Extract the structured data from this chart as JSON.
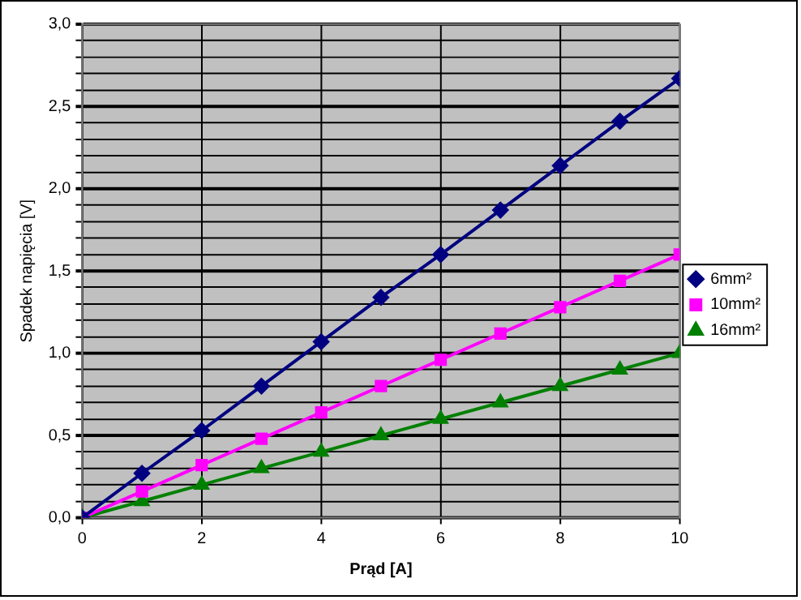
{
  "chart_data": {
    "type": "line",
    "xlabel": "Prąd [A]",
    "ylabel": "Spadek napięcia [V]",
    "x": [
      0,
      1,
      2,
      3,
      4,
      5,
      6,
      7,
      8,
      9,
      10
    ],
    "series": [
      {
        "name": "6mm²",
        "color": "#000080",
        "marker": "diamond",
        "values": [
          0,
          0.27,
          0.53,
          0.8,
          1.07,
          1.34,
          1.6,
          1.87,
          2.14,
          2.41,
          2.67
        ]
      },
      {
        "name": "10mm²",
        "color": "#ff00ff",
        "marker": "square",
        "values": [
          0,
          0.16,
          0.32,
          0.48,
          0.64,
          0.8,
          0.96,
          1.12,
          1.28,
          1.44,
          1.6
        ]
      },
      {
        "name": "16mm²",
        "color": "#008000",
        "marker": "triangle",
        "values": [
          0,
          0.1,
          0.2,
          0.3,
          0.4,
          0.5,
          0.6,
          0.7,
          0.8,
          0.9,
          1.0
        ]
      }
    ],
    "xlim": [
      0,
      10
    ],
    "xticks": [
      0,
      2,
      4,
      6,
      8,
      10
    ],
    "ylim": [
      0,
      3
    ],
    "yticks": [
      {
        "value": 0,
        "label": "0,0"
      },
      {
        "value": 0.1,
        "label": null
      },
      {
        "value": 0.2,
        "label": null
      },
      {
        "value": 0.3,
        "label": null
      },
      {
        "value": 0.4,
        "label": null
      },
      {
        "value": 0.5,
        "label": "0,5"
      },
      {
        "value": 0.6,
        "label": null
      },
      {
        "value": 0.7,
        "label": null
      },
      {
        "value": 0.8,
        "label": null
      },
      {
        "value": 0.9,
        "label": null
      },
      {
        "value": 1,
        "label": "1,0"
      },
      {
        "value": 1.1,
        "label": null
      },
      {
        "value": 1.2,
        "label": null
      },
      {
        "value": 1.3,
        "label": null
      },
      {
        "value": 1.4,
        "label": null
      },
      {
        "value": 1.5,
        "label": "1,5"
      },
      {
        "value": 1.6,
        "label": null
      },
      {
        "value": 1.7,
        "label": null
      },
      {
        "value": 1.8,
        "label": null
      },
      {
        "value": 1.9,
        "label": null
      },
      {
        "value": 2,
        "label": "2,0"
      },
      {
        "value": 2.1,
        "label": null
      },
      {
        "value": 2.2,
        "label": null
      },
      {
        "value": 2.3,
        "label": null
      },
      {
        "value": 2.4,
        "label": null
      },
      {
        "value": 2.5,
        "label": "2,5"
      },
      {
        "value": 2.6,
        "label": null
      },
      {
        "value": 2.7,
        "label": null
      },
      {
        "value": 2.8,
        "label": null
      },
      {
        "value": 2.9,
        "label": null
      },
      {
        "value": 3,
        "label": "3,0"
      }
    ],
    "grid": true,
    "legend": "right",
    "line_style": "solid"
  }
}
